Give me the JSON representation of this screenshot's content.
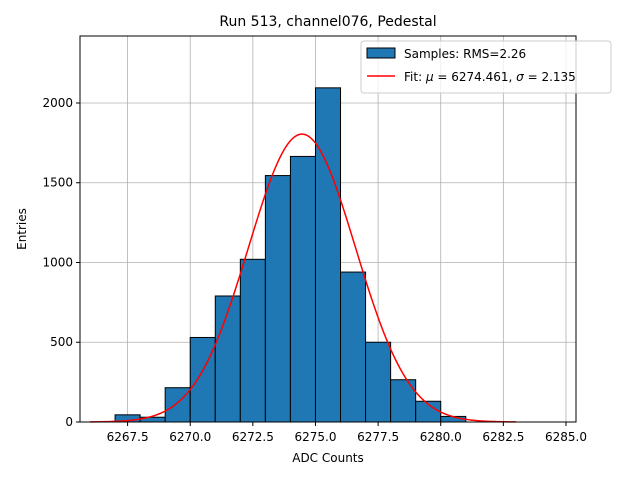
{
  "chart_data": {
    "type": "bar",
    "title": "Run 513, channel076, Pedestal",
    "xlabel": "ADC Counts",
    "ylabel": "Entries",
    "xlim": [
      6265.6,
      6285.4
    ],
    "ylim": [
      0,
      2420
    ],
    "grid": true,
    "legend_position": "top-right",
    "x_ticks": [
      6267.5,
      6270.0,
      6272.5,
      6275.0,
      6277.5,
      6280.0,
      6282.5,
      6285.0
    ],
    "x_tick_labels": [
      "6267.5",
      "6270.0",
      "6272.5",
      "6275.0",
      "6277.5",
      "6280.0",
      "6282.5",
      "6285.0"
    ],
    "y_ticks": [
      0,
      500,
      1000,
      1500,
      2000
    ],
    "y_tick_labels": [
      "0",
      "500",
      "1000",
      "1500",
      "2000"
    ],
    "histogram": {
      "name": "Samples: RMS=2.26",
      "color": "#1f77b4",
      "edge_color": "#000000",
      "bin_edges": [
        6267.0,
        6268.0,
        6269.0,
        6270.0,
        6271.0,
        6272.0,
        6273.0,
        6274.0,
        6275.0,
        6276.0,
        6277.0,
        6278.0,
        6279.0,
        6280.0,
        6281.0
      ],
      "counts": [
        45,
        30,
        215,
        530,
        790,
        1020,
        1545,
        1665,
        2095,
        940,
        500,
        265,
        130,
        35
      ]
    },
    "fit": {
      "name_prefix": "Fit: ",
      "mu_symbol": "μ",
      "mu_text": " = 6274.461, ",
      "sigma_symbol": "σ",
      "sigma_text": " = 2.135",
      "color": "#ff0000",
      "mu": 6274.461,
      "sigma": 2.135,
      "amplitude": 1805,
      "x_range": [
        6266.0,
        6283.0
      ]
    }
  }
}
